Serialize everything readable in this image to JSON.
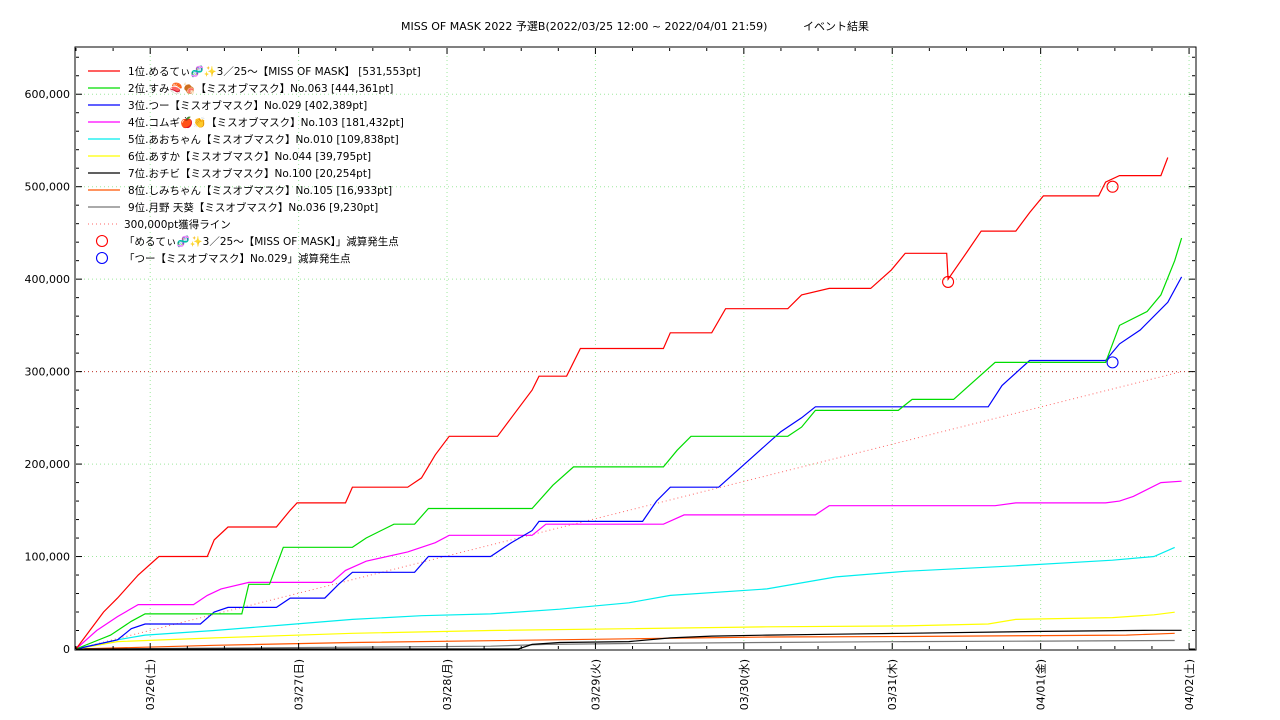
{
  "chart_data": {
    "type": "line",
    "title": "MISS OF MASK 2022 予選B(2022/03/25 12:00 ~ 2022/04/01 21:59)",
    "subtitle": "イベント結果",
    "x_ticks": [
      "03/26(土)",
      "03/27(日)",
      "03/28(月)",
      "03/29(火)",
      "03/30(水)",
      "03/31(木)",
      "04/01(金)",
      "04/02(土)"
    ],
    "x_range_days": [
      0,
      7.5
    ],
    "y_ticks": [
      "0",
      "100,000",
      "200,000",
      "300,000",
      "400,000",
      "500,000",
      "600,000"
    ],
    "ylim": [
      0,
      650000
    ],
    "grid": true,
    "legend_position": "top-left",
    "series": [
      {
        "name": "1位.めるてぃ🧬✨3／25〜【MISS OF MASK】 [531,553pt]",
        "color": "#ff0000",
        "points": [
          [
            0,
            0
          ],
          [
            0.1,
            20000
          ],
          [
            0.2,
            40000
          ],
          [
            0.3,
            55000
          ],
          [
            0.45,
            80000
          ],
          [
            0.6,
            100000
          ],
          [
            0.95,
            100000
          ],
          [
            1.0,
            118000
          ],
          [
            1.1,
            132000
          ],
          [
            1.45,
            132000
          ],
          [
            1.55,
            150000
          ],
          [
            1.6,
            158000
          ],
          [
            1.95,
            158000
          ],
          [
            2.0,
            175000
          ],
          [
            2.4,
            175000
          ],
          [
            2.5,
            185000
          ],
          [
            2.6,
            210000
          ],
          [
            2.7,
            230000
          ],
          [
            3.05,
            230000
          ],
          [
            3.15,
            250000
          ],
          [
            3.3,
            280000
          ],
          [
            3.35,
            295000
          ],
          [
            3.55,
            295000
          ],
          [
            3.65,
            325000
          ],
          [
            4.25,
            325000
          ],
          [
            4.3,
            342000
          ],
          [
            4.6,
            342000
          ],
          [
            4.7,
            368000
          ],
          [
            5.15,
            368000
          ],
          [
            5.25,
            383000
          ],
          [
            5.45,
            390000
          ],
          [
            5.75,
            390000
          ],
          [
            5.9,
            410000
          ],
          [
            6.0,
            428000
          ],
          [
            6.3,
            428000
          ],
          [
            6.31,
            400000
          ],
          [
            6.45,
            430000
          ],
          [
            6.55,
            452000
          ],
          [
            6.8,
            452000
          ],
          [
            6.9,
            472000
          ],
          [
            7.0,
            490000
          ],
          [
            7.4,
            490000
          ],
          [
            7.45,
            505000
          ],
          [
            7.55,
            512000
          ],
          [
            7.85,
            512000
          ],
          [
            7.9,
            531553
          ]
        ]
      },
      {
        "name": "2位.すみ🍣🍖【ミスオブマスク】No.063 [444,361pt]",
        "color": "#00dd00",
        "points": [
          [
            0,
            0
          ],
          [
            0.25,
            15000
          ],
          [
            0.4,
            30000
          ],
          [
            0.5,
            38000
          ],
          [
            1.2,
            38000
          ],
          [
            1.25,
            70000
          ],
          [
            1.4,
            70000
          ],
          [
            1.5,
            110000
          ],
          [
            2.0,
            110000
          ],
          [
            2.1,
            120000
          ],
          [
            2.3,
            135000
          ],
          [
            2.45,
            135000
          ],
          [
            2.55,
            152000
          ],
          [
            3.3,
            152000
          ],
          [
            3.45,
            177000
          ],
          [
            3.6,
            197000
          ],
          [
            4.25,
            197000
          ],
          [
            4.35,
            215000
          ],
          [
            4.45,
            230000
          ],
          [
            5.15,
            230000
          ],
          [
            5.25,
            240000
          ],
          [
            5.35,
            258000
          ],
          [
            5.95,
            258000
          ],
          [
            6.05,
            270000
          ],
          [
            6.35,
            270000
          ],
          [
            6.5,
            290000
          ],
          [
            6.65,
            310000
          ],
          [
            7.45,
            310000
          ],
          [
            7.55,
            350000
          ],
          [
            7.75,
            365000
          ],
          [
            7.85,
            383000
          ],
          [
            7.95,
            420000
          ],
          [
            8.0,
            444361
          ]
        ]
      },
      {
        "name": "3位.つー【ミスオブマスク】No.029 [402,389pt]",
        "color": "#0000ff",
        "points": [
          [
            0,
            0
          ],
          [
            0.3,
            10000
          ],
          [
            0.4,
            22000
          ],
          [
            0.5,
            27000
          ],
          [
            0.9,
            27000
          ],
          [
            1.0,
            40000
          ],
          [
            1.1,
            45000
          ],
          [
            1.45,
            45000
          ],
          [
            1.55,
            55000
          ],
          [
            1.8,
            55000
          ],
          [
            1.9,
            70000
          ],
          [
            2.0,
            83000
          ],
          [
            2.45,
            83000
          ],
          [
            2.55,
            100000
          ],
          [
            3.0,
            100000
          ],
          [
            3.15,
            115000
          ],
          [
            3.3,
            128000
          ],
          [
            3.35,
            138000
          ],
          [
            4.1,
            138000
          ],
          [
            4.2,
            160000
          ],
          [
            4.3,
            175000
          ],
          [
            4.65,
            175000
          ],
          [
            4.8,
            195000
          ],
          [
            4.95,
            215000
          ],
          [
            5.1,
            235000
          ],
          [
            5.25,
            250000
          ],
          [
            5.35,
            262000
          ],
          [
            6.05,
            262000
          ],
          [
            6.6,
            262000
          ],
          [
            6.7,
            285000
          ],
          [
            6.9,
            312000
          ],
          [
            7.45,
            312000
          ],
          [
            7.55,
            330000
          ],
          [
            7.7,
            345000
          ],
          [
            7.9,
            375000
          ],
          [
            8.0,
            402389
          ]
        ]
      },
      {
        "name": "4位.コムギ🍎👏【ミスオブマスク】No.103 [181,432pt]",
        "color": "#ff00ff",
        "points": [
          [
            0,
            0
          ],
          [
            0.15,
            20000
          ],
          [
            0.3,
            35000
          ],
          [
            0.45,
            48000
          ],
          [
            0.85,
            48000
          ],
          [
            0.95,
            58000
          ],
          [
            1.05,
            65000
          ],
          [
            1.25,
            72000
          ],
          [
            1.85,
            72000
          ],
          [
            1.95,
            85000
          ],
          [
            2.1,
            95000
          ],
          [
            2.4,
            105000
          ],
          [
            2.6,
            115000
          ],
          [
            2.7,
            123000
          ],
          [
            3.3,
            123000
          ],
          [
            3.4,
            135000
          ],
          [
            4.25,
            135000
          ],
          [
            4.4,
            145000
          ],
          [
            5.35,
            145000
          ],
          [
            5.45,
            155000
          ],
          [
            6.65,
            155000
          ],
          [
            6.8,
            158000
          ],
          [
            7.45,
            158000
          ],
          [
            7.55,
            160000
          ],
          [
            7.65,
            165000
          ],
          [
            7.85,
            180000
          ],
          [
            8.0,
            181432
          ]
        ]
      },
      {
        "name": "5位.あおちゃん【ミスオブマスク】No.010 [109,838pt]",
        "color": "#00eeee",
        "points": [
          [
            0,
            0
          ],
          [
            0.3,
            10000
          ],
          [
            0.5,
            15000
          ],
          [
            1.0,
            20000
          ],
          [
            1.5,
            26000
          ],
          [
            2.0,
            32000
          ],
          [
            2.5,
            36000
          ],
          [
            3.0,
            38000
          ],
          [
            3.5,
            43000
          ],
          [
            4.0,
            50000
          ],
          [
            4.3,
            58000
          ],
          [
            5.0,
            65000
          ],
          [
            5.5,
            78000
          ],
          [
            6.0,
            84000
          ],
          [
            6.8,
            90000
          ],
          [
            7.5,
            96000
          ],
          [
            7.8,
            100000
          ],
          [
            7.95,
            109838
          ]
        ]
      },
      {
        "name": "6位.あすか【ミスオブマスク】No.044 [39,795pt]",
        "color": "#ffff00",
        "points": [
          [
            0,
            0
          ],
          [
            0.3,
            8000
          ],
          [
            1.0,
            12000
          ],
          [
            2.0,
            17000
          ],
          [
            3.0,
            20000
          ],
          [
            4.0,
            22000
          ],
          [
            5.0,
            24000
          ],
          [
            6.0,
            25000
          ],
          [
            6.6,
            27000
          ],
          [
            6.8,
            32000
          ],
          [
            7.5,
            34000
          ],
          [
            7.8,
            37000
          ],
          [
            7.95,
            39795
          ]
        ]
      },
      {
        "name": "7位.おチビ【ミスオブマスク】No.100 [20,254pt]",
        "color": "#000000",
        "points": [
          [
            0,
            0
          ],
          [
            3.2,
            0
          ],
          [
            3.3,
            5000
          ],
          [
            3.5,
            7000
          ],
          [
            4.0,
            8000
          ],
          [
            4.3,
            12000
          ],
          [
            4.6,
            14000
          ],
          [
            5.0,
            15000
          ],
          [
            5.5,
            16000
          ],
          [
            6.0,
            17000
          ],
          [
            7.0,
            19000
          ],
          [
            7.8,
            20254
          ],
          [
            8.0,
            20254
          ]
        ]
      },
      {
        "name": "8位.しみちゃん【ミスオブマスク】No.105 [16,933pt]",
        "color": "#ff5500",
        "points": [
          [
            0,
            0
          ],
          [
            0.5,
            2000
          ],
          [
            1.0,
            4000
          ],
          [
            2.0,
            7000
          ],
          [
            3.0,
            9000
          ],
          [
            4.0,
            11000
          ],
          [
            4.5,
            12000
          ],
          [
            5.0,
            13000
          ],
          [
            6.0,
            13500
          ],
          [
            7.0,
            14500
          ],
          [
            7.6,
            15000
          ],
          [
            7.95,
            16933
          ]
        ]
      },
      {
        "name": "9位.月野 天葵【ミスオブマスク】No.036 [9,230pt]",
        "color": "#777777",
        "points": [
          [
            0,
            0
          ],
          [
            1.0,
            1000
          ],
          [
            2.0,
            2000
          ],
          [
            3.0,
            3000
          ],
          [
            3.4,
            5000
          ],
          [
            4.0,
            6000
          ],
          [
            5.0,
            7000
          ],
          [
            6.0,
            8000
          ],
          [
            7.0,
            8500
          ],
          [
            7.95,
            9230
          ]
        ]
      }
    ],
    "reference_line": {
      "name": "300,000pt獲得ライン",
      "color": "#ff0000",
      "y": 300000,
      "diagonal": [
        [
          0,
          0
        ],
        [
          8.0,
          300000
        ]
      ]
    },
    "markers": [
      {
        "name": "「めるてぃ🧬✨3／25〜【MISS OF MASK】」減算発生点",
        "color": "#ff0000",
        "points": [
          [
            6.31,
            397000
          ],
          [
            7.5,
            500000
          ]
        ]
      },
      {
        "name": "「つー【ミスオブマスク】No.029」減算発生点",
        "color": "#0000ff",
        "points": [
          [
            7.5,
            310000
          ]
        ]
      }
    ]
  }
}
